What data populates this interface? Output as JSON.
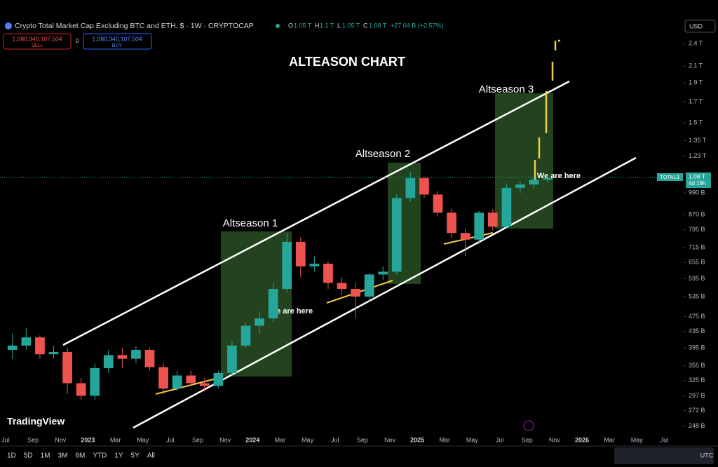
{
  "header": {
    "symbol": "Crypto Total Market Cap Excluding BTC and ETH, $ · 1W · CRYPTOCAP",
    "o_label": "O",
    "o": "1.05 T",
    "h_label": "H",
    "h": "1.1 T",
    "l_label": "L",
    "l": "1.05 T",
    "c_label": "C",
    "c": "1.08 T",
    "change": "+27.04 B (+2.57%)",
    "sell_price": "1,080,340,107,504",
    "sell": "SELL",
    "spread": "0",
    "buy_price": "1,080,340,107,504",
    "buy": "BUY",
    "currency": "USD"
  },
  "annotations": {
    "title": "ALTEASON CHART",
    "season1": "Altseason 1",
    "season2": "Altseason 2",
    "season3": "Altseason 3",
    "here1": "We are here",
    "here2": "We are here",
    "logo": "TradingView",
    "price_tag": "TOTAL3",
    "price_tag_value": "1.08 T",
    "price_tag_time": "4d 19h"
  },
  "toolbar": {
    "ranges": [
      "1D",
      "5D",
      "1M",
      "3M",
      "6M",
      "YTD",
      "1Y",
      "5Y",
      "All"
    ],
    "timezone": "UTC"
  },
  "chart_data": {
    "type": "candlestick",
    "yscale": "log",
    "up_color": "#26a69a",
    "down_color": "#ef5350",
    "x": [
      "2022-07",
      "2022-08",
      "2022-09",
      "2022-10",
      "2022-11",
      "2022-12",
      "2023-01",
      "2023-02",
      "2023-03",
      "2023-04",
      "2023-05",
      "2023-06",
      "2023-07",
      "2023-08",
      "2023-09",
      "2023-10",
      "2023-11",
      "2023-12",
      "2024-01",
      "2024-02",
      "2024-03",
      "2024-04",
      "2024-05",
      "2024-06",
      "2024-07",
      "2024-08",
      "2024-09",
      "2024-10",
      "2024-11",
      "2024-12",
      "2025-01",
      "2025-02",
      "2025-03",
      "2025-04",
      "2025-05",
      "2025-06",
      "2025-07",
      "2025-08",
      "2025-09",
      "2025-10"
    ],
    "open": [
      390,
      400,
      420,
      380,
      385,
      320,
      297,
      350,
      378,
      370,
      390,
      352,
      310,
      335,
      320,
      315,
      340,
      400,
      450,
      470,
      560,
      740,
      640,
      650,
      580,
      560,
      535,
      610,
      620,
      960,
      1080,
      980,
      880,
      780,
      750,
      880,
      810,
      1020,
      1040,
      1070
    ],
    "high": [
      430,
      445,
      425,
      400,
      395,
      330,
      360,
      390,
      395,
      400,
      395,
      360,
      345,
      345,
      330,
      345,
      410,
      460,
      490,
      580,
      780,
      760,
      680,
      660,
      600,
      580,
      615,
      640,
      980,
      1120,
      1090,
      1000,
      900,
      800,
      890,
      900,
      1040,
      1060,
      1090,
      1100
    ],
    "low": [
      370,
      390,
      370,
      370,
      300,
      290,
      290,
      340,
      350,
      360,
      345,
      300,
      305,
      315,
      305,
      310,
      335,
      395,
      430,
      460,
      550,
      600,
      620,
      560,
      540,
      470,
      520,
      590,
      610,
      940,
      960,
      860,
      760,
      680,
      730,
      790,
      800,
      990,
      1010,
      1050
    ],
    "high_note": null,
    "close": [
      400,
      420,
      380,
      385,
      320,
      297,
      350,
      378,
      370,
      390,
      352,
      310,
      335,
      320,
      315,
      340,
      400,
      450,
      470,
      560,
      740,
      640,
      650,
      580,
      560,
      535,
      610,
      620,
      960,
      1080,
      980,
      880,
      780,
      750,
      880,
      810,
      1020,
      1040,
      1070,
      1080
    ],
    "xlim": [
      "2022-07",
      "2026-08"
    ],
    "xticks": [
      {
        "value": "2022-07",
        "label": "Jul"
      },
      {
        "value": "2022-09",
        "label": "Sep"
      },
      {
        "value": "2022-11",
        "label": "Nov"
      },
      {
        "value": "2023-01",
        "label": "2023"
      },
      {
        "value": "2023-03",
        "label": "Mar"
      },
      {
        "value": "2023-05",
        "label": "May"
      },
      {
        "value": "2023-07",
        "label": "Jul"
      },
      {
        "value": "2023-09",
        "label": "Sep"
      },
      {
        "value": "2023-11",
        "label": "Nov"
      },
      {
        "value": "2024-01",
        "label": "2024"
      },
      {
        "value": "2024-03",
        "label": "Mar"
      },
      {
        "value": "2024-05",
        "label": "May"
      },
      {
        "value": "2024-07",
        "label": "Jul"
      },
      {
        "value": "2024-09",
        "label": "Sep"
      },
      {
        "value": "2024-11",
        "label": "Nov"
      },
      {
        "value": "2025-01",
        "label": "2025"
      },
      {
        "value": "2025-03",
        "label": "Mar"
      },
      {
        "value": "2025-05",
        "label": "May"
      },
      {
        "value": "2025-07",
        "label": "Jul"
      },
      {
        "value": "2025-09",
        "label": "Sep"
      },
      {
        "value": "2025-11",
        "label": "Nov"
      },
      {
        "value": "2026-01",
        "label": "2026"
      },
      {
        "value": "2026-03",
        "label": "Mar"
      },
      {
        "value": "2026-05",
        "label": "May"
      },
      {
        "value": "2026-07",
        "label": "Jul"
      }
    ],
    "ylim": [
      228,
      2545
    ],
    "yticks": [
      {
        "value": 2400,
        "label": "2.4 T"
      },
      {
        "value": 2100,
        "label": "2.1 T"
      },
      {
        "value": 1900,
        "label": "1.9 T"
      },
      {
        "value": 1700,
        "label": "1.7 T"
      },
      {
        "value": 1500,
        "label": "1.5 T"
      },
      {
        "value": 1350,
        "label": "1.35 T"
      },
      {
        "value": 1230,
        "label": "1.23 T"
      },
      {
        "value": 990,
        "label": "990 B"
      },
      {
        "value": 870,
        "label": "870 B"
      },
      {
        "value": 795,
        "label": "795 B"
      },
      {
        "value": 715,
        "label": "715 B"
      },
      {
        "value": 655,
        "label": "655 B"
      },
      {
        "value": 595,
        "label": "595 B"
      },
      {
        "value": 535,
        "label": "535 B"
      },
      {
        "value": 475,
        "label": "475 B"
      },
      {
        "value": 435,
        "label": "435 B"
      },
      {
        "value": 395,
        "label": "395 B"
      },
      {
        "value": 355,
        "label": "355 B"
      },
      {
        "value": 325,
        "label": "325 B"
      },
      {
        "value": 297,
        "label": "297 B"
      },
      {
        "value": 272,
        "label": "272 B"
      },
      {
        "value": 248,
        "label": "248 B"
      }
    ]
  }
}
